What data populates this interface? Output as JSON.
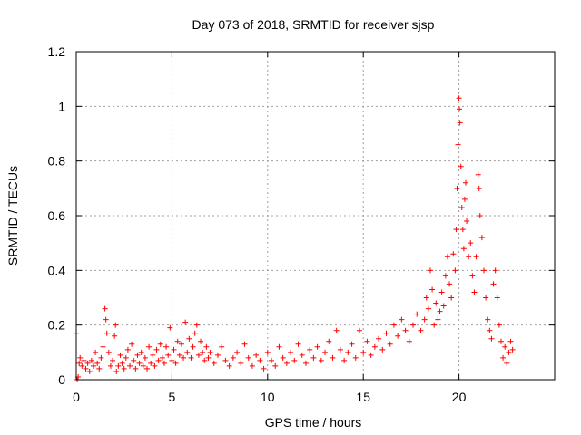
{
  "chart_data": {
    "type": "scatter",
    "title": "Day 073 of 2018, SRMTID for receiver sjsp",
    "xlabel": "GPS time / hours",
    "ylabel": "SRMTID / TECUs",
    "xlim": [
      0,
      25
    ],
    "ylim": [
      0,
      1.2
    ],
    "grid": true,
    "marker": "+",
    "x_ticks": [
      0,
      5,
      10,
      15,
      20
    ],
    "x_tick_labels": [
      "0",
      "5",
      "10",
      "15",
      "20"
    ],
    "y_ticks": [
      0,
      0.2,
      0.4,
      0.6,
      0.8,
      1.0,
      1.2
    ],
    "y_tick_labels": [
      "0",
      "0.2",
      "0.4",
      "0.6",
      "0.8",
      "1",
      "1.2"
    ],
    "series": [
      {
        "name": "SRMTID",
        "color": "#ff0000",
        "points": [
          [
            0.0,
            0.17
          ],
          [
            0.05,
            0.0
          ],
          [
            0.1,
            0.01
          ],
          [
            0.15,
            0.06
          ],
          [
            0.2,
            0.08
          ],
          [
            0.3,
            0.05
          ],
          [
            0.4,
            0.07
          ],
          [
            0.5,
            0.04
          ],
          [
            0.6,
            0.06
          ],
          [
            0.7,
            0.03
          ],
          [
            0.8,
            0.07
          ],
          [
            0.9,
            0.05
          ],
          [
            1.0,
            0.1
          ],
          [
            1.1,
            0.06
          ],
          [
            1.2,
            0.04
          ],
          [
            1.3,
            0.08
          ],
          [
            1.4,
            0.12
          ],
          [
            1.5,
            0.26
          ],
          [
            1.55,
            0.22
          ],
          [
            1.6,
            0.17
          ],
          [
            1.7,
            0.1
          ],
          [
            1.8,
            0.05
          ],
          [
            1.9,
            0.07
          ],
          [
            2.0,
            0.16
          ],
          [
            2.05,
            0.2
          ],
          [
            2.1,
            0.03
          ],
          [
            2.2,
            0.05
          ],
          [
            2.3,
            0.09
          ],
          [
            2.4,
            0.06
          ],
          [
            2.5,
            0.04
          ],
          [
            2.6,
            0.08
          ],
          [
            2.7,
            0.11
          ],
          [
            2.8,
            0.05
          ],
          [
            2.9,
            0.13
          ],
          [
            3.0,
            0.07
          ],
          [
            3.1,
            0.04
          ],
          [
            3.2,
            0.09
          ],
          [
            3.3,
            0.06
          ],
          [
            3.4,
            0.1
          ],
          [
            3.5,
            0.05
          ],
          [
            3.6,
            0.08
          ],
          [
            3.7,
            0.04
          ],
          [
            3.8,
            0.12
          ],
          [
            3.9,
            0.06
          ],
          [
            4.0,
            0.09
          ],
          [
            4.1,
            0.05
          ],
          [
            4.2,
            0.11
          ],
          [
            4.3,
            0.07
          ],
          [
            4.4,
            0.13
          ],
          [
            4.5,
            0.08
          ],
          [
            4.6,
            0.06
          ],
          [
            4.7,
            0.12
          ],
          [
            4.8,
            0.09
          ],
          [
            4.9,
            0.19
          ],
          [
            5.0,
            0.07
          ],
          [
            5.1,
            0.11
          ],
          [
            5.2,
            0.06
          ],
          [
            5.3,
            0.14
          ],
          [
            5.4,
            0.09
          ],
          [
            5.5,
            0.13
          ],
          [
            5.6,
            0.08
          ],
          [
            5.7,
            0.21
          ],
          [
            5.8,
            0.1
          ],
          [
            5.9,
            0.15
          ],
          [
            6.0,
            0.08
          ],
          [
            6.1,
            0.12
          ],
          [
            6.2,
            0.17
          ],
          [
            6.3,
            0.2
          ],
          [
            6.4,
            0.09
          ],
          [
            6.5,
            0.14
          ],
          [
            6.6,
            0.1
          ],
          [
            6.7,
            0.07
          ],
          [
            6.8,
            0.12
          ],
          [
            6.9,
            0.08
          ],
          [
            7.0,
            0.1
          ],
          [
            7.2,
            0.06
          ],
          [
            7.4,
            0.09
          ],
          [
            7.6,
            0.12
          ],
          [
            7.8,
            0.07
          ],
          [
            8.0,
            0.05
          ],
          [
            8.2,
            0.08
          ],
          [
            8.4,
            0.1
          ],
          [
            8.6,
            0.06
          ],
          [
            8.8,
            0.13
          ],
          [
            9.0,
            0.08
          ],
          [
            9.2,
            0.05
          ],
          [
            9.4,
            0.09
          ],
          [
            9.6,
            0.07
          ],
          [
            9.8,
            0.04
          ],
          [
            10.0,
            0.1
          ],
          [
            10.2,
            0.07
          ],
          [
            10.4,
            0.05
          ],
          [
            10.6,
            0.12
          ],
          [
            10.8,
            0.08
          ],
          [
            11.0,
            0.06
          ],
          [
            11.2,
            0.1
          ],
          [
            11.4,
            0.07
          ],
          [
            11.6,
            0.13
          ],
          [
            11.8,
            0.09
          ],
          [
            12.0,
            0.06
          ],
          [
            12.2,
            0.11
          ],
          [
            12.4,
            0.08
          ],
          [
            12.6,
            0.12
          ],
          [
            12.8,
            0.07
          ],
          [
            13.0,
            0.1
          ],
          [
            13.2,
            0.14
          ],
          [
            13.4,
            0.08
          ],
          [
            13.6,
            0.18
          ],
          [
            13.8,
            0.11
          ],
          [
            14.0,
            0.07
          ],
          [
            14.2,
            0.1
          ],
          [
            14.4,
            0.13
          ],
          [
            14.6,
            0.08
          ],
          [
            14.8,
            0.18
          ],
          [
            15.0,
            0.1
          ],
          [
            15.2,
            0.14
          ],
          [
            15.4,
            0.09
          ],
          [
            15.6,
            0.12
          ],
          [
            15.8,
            0.15
          ],
          [
            16.0,
            0.11
          ],
          [
            16.2,
            0.17
          ],
          [
            16.4,
            0.13
          ],
          [
            16.6,
            0.2
          ],
          [
            16.8,
            0.16
          ],
          [
            17.0,
            0.22
          ],
          [
            17.2,
            0.18
          ],
          [
            17.4,
            0.14
          ],
          [
            17.6,
            0.2
          ],
          [
            17.8,
            0.24
          ],
          [
            18.0,
            0.18
          ],
          [
            18.2,
            0.22
          ],
          [
            18.3,
            0.3
          ],
          [
            18.4,
            0.26
          ],
          [
            18.5,
            0.4
          ],
          [
            18.6,
            0.33
          ],
          [
            18.7,
            0.2
          ],
          [
            18.8,
            0.28
          ],
          [
            18.9,
            0.22
          ],
          [
            19.0,
            0.25
          ],
          [
            19.1,
            0.32
          ],
          [
            19.2,
            0.27
          ],
          [
            19.3,
            0.38
          ],
          [
            19.4,
            0.45
          ],
          [
            19.5,
            0.35
          ],
          [
            19.6,
            0.3
          ],
          [
            19.7,
            0.46
          ],
          [
            19.8,
            0.4
          ],
          [
            19.85,
            0.55
          ],
          [
            19.9,
            0.7
          ],
          [
            19.95,
            0.86
          ],
          [
            20.0,
            1.03
          ],
          [
            20.02,
            0.99
          ],
          [
            20.05,
            0.94
          ],
          [
            20.1,
            0.78
          ],
          [
            20.15,
            0.63
          ],
          [
            20.2,
            0.55
          ],
          [
            20.25,
            0.48
          ],
          [
            20.3,
            0.66
          ],
          [
            20.35,
            0.72
          ],
          [
            20.4,
            0.58
          ],
          [
            20.5,
            0.45
          ],
          [
            20.6,
            0.5
          ],
          [
            20.7,
            0.38
          ],
          [
            20.8,
            0.32
          ],
          [
            20.9,
            0.45
          ],
          [
            21.0,
            0.75
          ],
          [
            21.05,
            0.7
          ],
          [
            21.1,
            0.6
          ],
          [
            21.2,
            0.52
          ],
          [
            21.3,
            0.4
          ],
          [
            21.4,
            0.3
          ],
          [
            21.5,
            0.22
          ],
          [
            21.6,
            0.18
          ],
          [
            21.7,
            0.15
          ],
          [
            21.8,
            0.35
          ],
          [
            21.9,
            0.4
          ],
          [
            22.0,
            0.3
          ],
          [
            22.1,
            0.2
          ],
          [
            22.2,
            0.14
          ],
          [
            22.3,
            0.08
          ],
          [
            22.4,
            0.12
          ],
          [
            22.5,
            0.06
          ],
          [
            22.6,
            0.1
          ],
          [
            22.7,
            0.14
          ],
          [
            22.8,
            0.11
          ]
        ]
      }
    ]
  }
}
